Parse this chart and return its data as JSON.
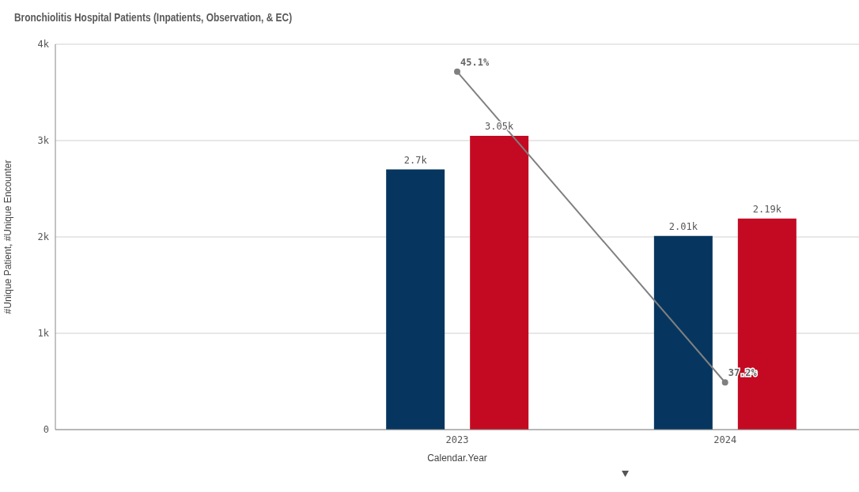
{
  "chart_data": {
    "type": "bar",
    "title": "Bronchiolitis Hospital Patients (Inpatients, Observation, & EC)",
    "xlabel": "Calendar.Year",
    "ylabel": "#Unique Patient, #Unique Encounter",
    "categories": [
      null,
      "2023",
      "2024"
    ],
    "series": [
      {
        "color": "#06365f",
        "values": [
          null,
          2700,
          2010
        ],
        "value_labels": [
          null,
          "2.7k",
          "2.01k"
        ]
      },
      {
        "color": "#c40a22",
        "values": [
          null,
          3050,
          2190
        ],
        "value_labels": [
          null,
          "3.05k",
          "2.19k"
        ]
      },
      {
        "type": "line",
        "axis": "y2",
        "color": "#808080",
        "values": [
          null,
          45.1,
          37.2
        ],
        "value_labels": [
          null,
          "45.1%",
          "37.2%"
        ],
        "marker": "circle",
        "line_style": "solid"
      }
    ],
    "ylim": [
      0,
      4000
    ],
    "yticks": [
      0,
      {
        "value": 1000,
        "label": "1k"
      },
      {
        "value": 2000,
        "label": "2k"
      },
      {
        "value": 3000,
        "label": "3k"
      },
      {
        "value": 4000,
        "label": "4k"
      }
    ],
    "y2lim": [
      36,
      45.8
    ],
    "grid": "y",
    "legend": false
  }
}
